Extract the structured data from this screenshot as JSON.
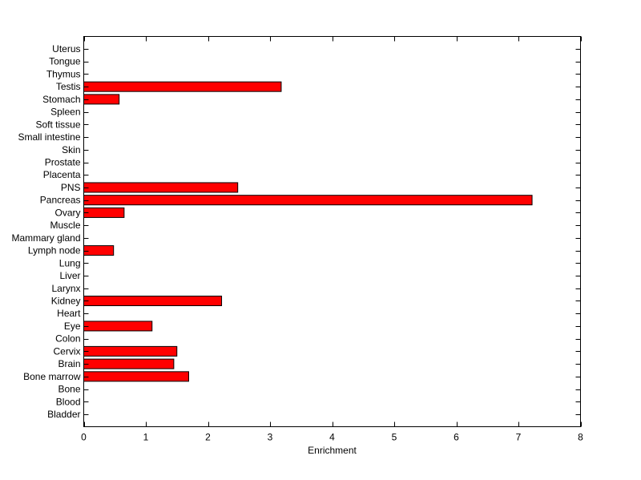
{
  "chart_data": {
    "type": "bar",
    "orientation": "horizontal",
    "categories": [
      "Uterus",
      "Tongue",
      "Thymus",
      "Testis",
      "Stomach",
      "Spleen",
      "Soft tissue",
      "Small intestine",
      "Skin",
      "Prostate",
      "Placenta",
      "PNS",
      "Pancreas",
      "Ovary",
      "Muscle",
      "Mammary gland",
      "Lymph node",
      "Lung",
      "Liver",
      "Larynx",
      "Kidney",
      "Heart",
      "Eye",
      "Colon",
      "Cervix",
      "Brain",
      "Bone marrow",
      "Bone",
      "Blood",
      "Bladder"
    ],
    "values": [
      0,
      0,
      0,
      3.18,
      0.57,
      0,
      0,
      0,
      0,
      0,
      0,
      2.48,
      7.22,
      0.65,
      0,
      0,
      0.48,
      0,
      0,
      0,
      2.22,
      0,
      1.1,
      0,
      1.5,
      1.45,
      1.69,
      0,
      0,
      0
    ],
    "xlabel": "Enrichment",
    "ylabel": "",
    "title": "",
    "xlim": [
      0,
      8
    ],
    "xticks": [
      0,
      1,
      2,
      3,
      4,
      5,
      6,
      7,
      8
    ],
    "grid": false,
    "bar_color": "#ff0000",
    "bar_edge_color": "#000000"
  }
}
